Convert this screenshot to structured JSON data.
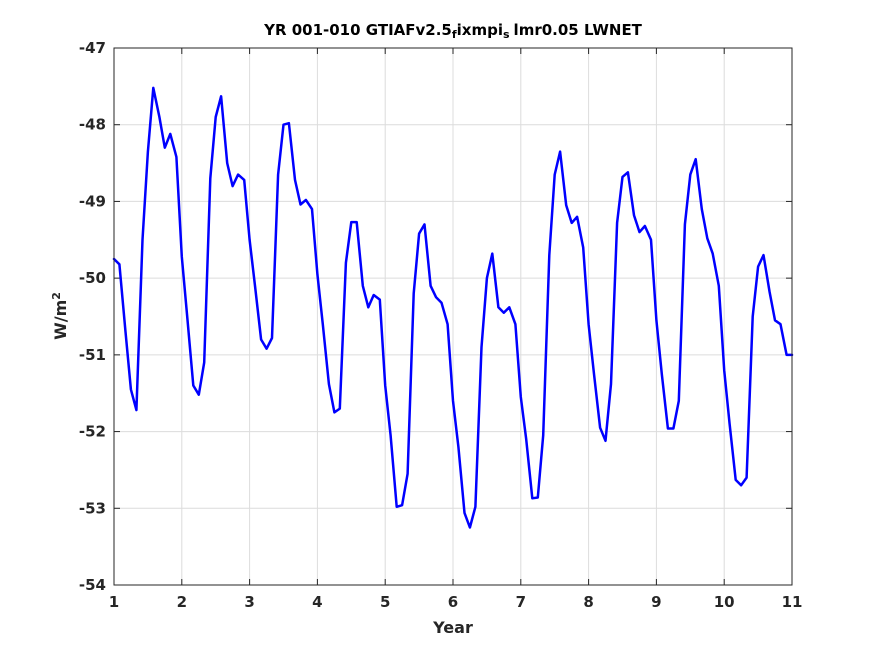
{
  "chart_data": {
    "type": "line",
    "title_main": "YR 001-010 GTIAFv2.5",
    "title_sub1": "f",
    "title_mid": "ixmpi",
    "title_sub2": "s",
    "title_end": "lmr0.05 LWNET",
    "xlabel": "Year",
    "ylabel_base": "W/m",
    "ylabel_sup": "2",
    "xlim": [
      1,
      11
    ],
    "ylim": [
      -54,
      -47
    ],
    "xticks": [
      1,
      2,
      3,
      4,
      5,
      6,
      7,
      8,
      9,
      10,
      11
    ],
    "yticks": [
      -47,
      -48,
      -49,
      -50,
      -51,
      -52,
      -53,
      -54
    ],
    "grid": true,
    "line_color": "#0000ff",
    "series": [
      {
        "x": [
          1.0,
          1.08,
          1.17,
          1.25,
          1.33,
          1.42,
          1.5,
          1.58,
          1.67,
          1.75,
          1.83,
          1.92,
          2.0,
          2.08,
          2.17,
          2.25,
          2.33,
          2.42,
          2.5,
          2.58,
          2.67,
          2.75,
          2.83,
          2.92,
          3.0,
          3.08,
          3.17,
          3.25,
          3.33,
          3.42,
          3.5,
          3.58,
          3.67,
          3.75,
          3.83,
          3.92,
          4.0,
          4.08,
          4.17,
          4.25,
          4.33,
          4.42,
          4.5,
          4.58,
          4.67,
          4.75,
          4.83,
          4.92,
          5.0,
          5.08,
          5.17,
          5.25,
          5.33,
          5.42,
          5.5,
          5.58,
          5.67,
          5.75,
          5.83,
          5.92,
          6.0,
          6.08,
          6.17,
          6.25,
          6.33,
          6.42,
          6.5,
          6.58,
          6.67,
          6.75,
          6.83,
          6.92,
          7.0,
          7.08,
          7.17,
          7.25,
          7.33,
          7.42,
          7.5,
          7.58,
          7.67,
          7.75,
          7.83,
          7.92,
          8.0,
          8.08,
          8.17,
          8.25,
          8.33,
          8.42,
          8.5,
          8.58,
          8.67,
          8.75,
          8.83,
          8.92,
          9.0,
          9.08,
          9.17,
          9.25,
          9.33,
          9.42,
          9.5,
          9.58,
          9.67,
          9.75,
          9.83,
          9.92,
          10.0,
          10.08,
          10.17,
          10.25,
          10.33,
          10.42,
          10.5,
          10.58,
          10.67,
          10.75,
          10.83,
          10.92,
          11.0
        ],
        "y": [
          -49.75,
          -49.82,
          -50.7,
          -51.45,
          -51.72,
          -49.5,
          -48.35,
          -47.52,
          -47.9,
          -48.3,
          -48.12,
          -48.42,
          -49.72,
          -50.5,
          -51.4,
          -51.52,
          -51.1,
          -48.7,
          -47.9,
          -47.63,
          -48.5,
          -48.8,
          -48.65,
          -48.72,
          -49.5,
          -50.1,
          -50.8,
          -50.92,
          -50.78,
          -48.65,
          -48.0,
          -47.98,
          -48.72,
          -49.04,
          -48.98,
          -49.1,
          -49.95,
          -50.6,
          -51.38,
          -51.75,
          -51.7,
          -49.8,
          -49.27,
          -49.27,
          -50.1,
          -50.38,
          -50.22,
          -50.28,
          -51.4,
          -52.05,
          -52.98,
          -52.96,
          -52.55,
          -50.2,
          -49.42,
          -49.3,
          -50.1,
          -50.25,
          -50.32,
          -50.6,
          -51.6,
          -52.2,
          -53.06,
          -53.25,
          -52.98,
          -50.9,
          -50.0,
          -49.68,
          -50.38,
          -50.45,
          -50.38,
          -50.6,
          -51.55,
          -52.1,
          -52.87,
          -52.86,
          -52.05,
          -49.7,
          -48.65,
          -48.35,
          -49.05,
          -49.28,
          -49.2,
          -49.6,
          -50.6,
          -51.25,
          -51.95,
          -52.12,
          -51.38,
          -49.28,
          -48.68,
          -48.62,
          -49.18,
          -49.4,
          -49.32,
          -49.5,
          -50.55,
          -51.25,
          -51.96,
          -51.96,
          -51.6,
          -49.3,
          -48.65,
          -48.45,
          -49.1,
          -49.48,
          -49.68,
          -50.1,
          -51.2,
          -51.9,
          -52.63,
          -52.7,
          -52.6,
          -50.5,
          -49.85,
          -49.7,
          -50.18,
          -50.55,
          -50.6,
          -51.0,
          -51.0
        ]
      }
    ]
  }
}
